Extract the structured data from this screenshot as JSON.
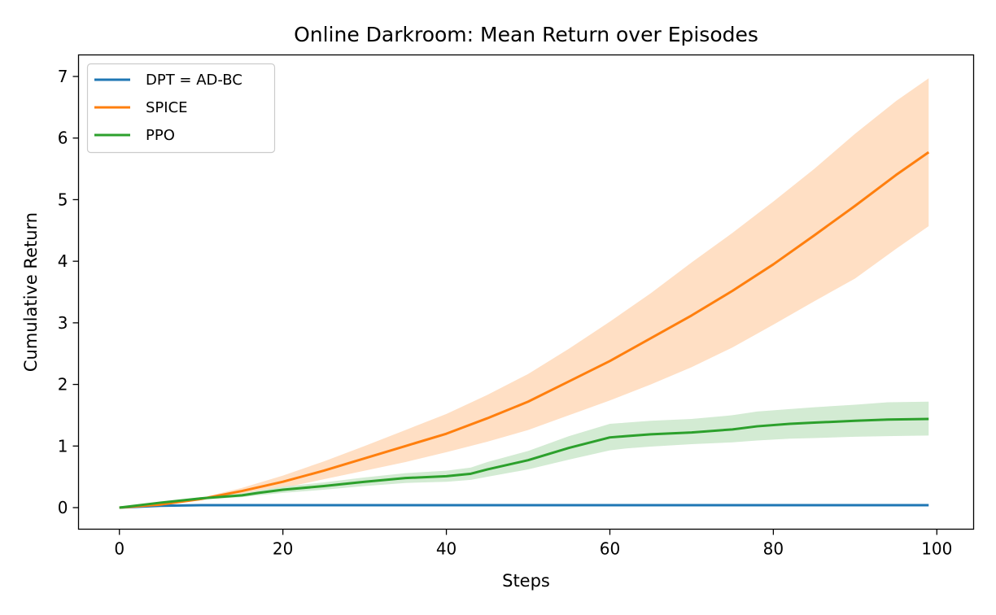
{
  "chart_data": {
    "type": "line",
    "title": "Online Darkroom: Mean Return over Episodes",
    "xlabel": "Steps",
    "ylabel": "Cumulative Return",
    "xlim": [
      -5,
      104.5
    ],
    "ylim": [
      -0.35,
      7.35
    ],
    "xticks": [
      0,
      20,
      40,
      60,
      80,
      100
    ],
    "yticks": [
      0,
      1,
      2,
      3,
      4,
      5,
      6,
      7
    ],
    "grid": false,
    "legend_position": "top-left",
    "series": [
      {
        "name": "DPT = AD-BC",
        "color": "#1f77b4",
        "x": [
          0,
          5,
          10,
          20,
          40,
          60,
          80,
          99
        ],
        "y": [
          0.0,
          0.03,
          0.04,
          0.04,
          0.04,
          0.04,
          0.04,
          0.04
        ]
      },
      {
        "name": "SPICE",
        "color": "#ff7f0e",
        "band_color": "#ffdfc4",
        "x": [
          0,
          5,
          10,
          15,
          20,
          25,
          30,
          35,
          40,
          45,
          50,
          55,
          60,
          65,
          70,
          75,
          80,
          85,
          90,
          95,
          99
        ],
        "y": [
          0.0,
          0.05,
          0.14,
          0.27,
          0.42,
          0.6,
          0.8,
          1.0,
          1.2,
          1.45,
          1.72,
          2.05,
          2.38,
          2.75,
          3.12,
          3.52,
          3.95,
          4.42,
          4.9,
          5.4,
          5.77
        ],
        "lower": [
          0.0,
          0.04,
          0.12,
          0.22,
          0.32,
          0.46,
          0.6,
          0.74,
          0.9,
          1.07,
          1.26,
          1.5,
          1.74,
          2.0,
          2.28,
          2.6,
          2.97,
          3.35,
          3.72,
          4.2,
          4.57
        ],
        "upper": [
          0.0,
          0.06,
          0.16,
          0.32,
          0.52,
          0.75,
          1.0,
          1.26,
          1.52,
          1.83,
          2.17,
          2.58,
          3.02,
          3.48,
          3.98,
          4.46,
          4.97,
          5.5,
          6.07,
          6.6,
          6.97
        ]
      },
      {
        "name": "PPO",
        "color": "#2ca02c",
        "band_color": "#d3ebd3",
        "x": [
          0,
          5,
          10,
          15,
          17,
          20,
          25,
          30,
          35,
          40,
          43,
          45,
          50,
          55,
          60,
          62,
          65,
          70,
          75,
          78,
          82,
          85,
          90,
          94,
          99
        ],
        "y": [
          0.0,
          0.08,
          0.15,
          0.2,
          0.24,
          0.29,
          0.35,
          0.42,
          0.48,
          0.51,
          0.55,
          0.62,
          0.77,
          0.97,
          1.14,
          1.16,
          1.19,
          1.22,
          1.27,
          1.32,
          1.36,
          1.38,
          1.41,
          1.43,
          1.44
        ],
        "lower": [
          0.0,
          0.07,
          0.13,
          0.17,
          0.2,
          0.24,
          0.29,
          0.35,
          0.4,
          0.42,
          0.45,
          0.5,
          0.62,
          0.78,
          0.93,
          0.96,
          0.99,
          1.03,
          1.06,
          1.09,
          1.12,
          1.13,
          1.15,
          1.16,
          1.17
        ],
        "upper": [
          0.0,
          0.09,
          0.17,
          0.23,
          0.28,
          0.34,
          0.41,
          0.49,
          0.56,
          0.6,
          0.65,
          0.74,
          0.92,
          1.16,
          1.36,
          1.38,
          1.41,
          1.44,
          1.5,
          1.56,
          1.6,
          1.63,
          1.67,
          1.71,
          1.72
        ]
      }
    ]
  }
}
